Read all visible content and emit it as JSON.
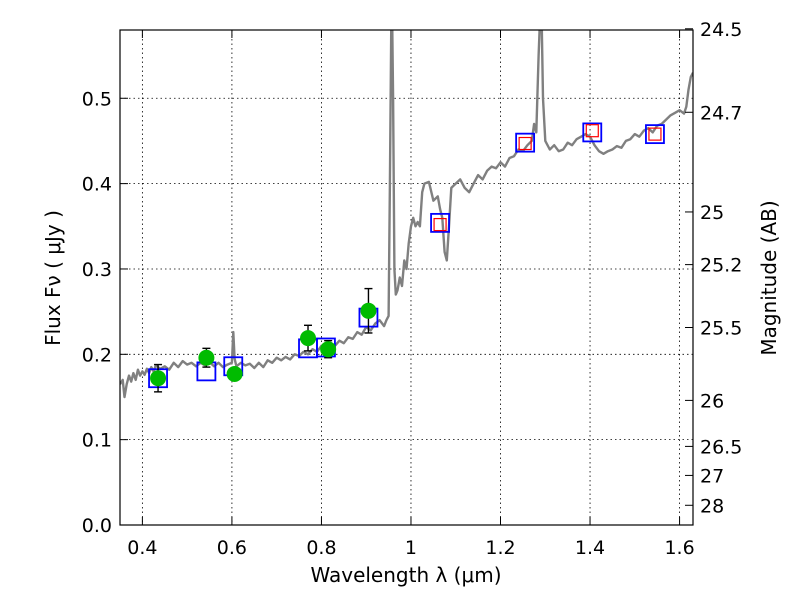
{
  "chart_data": {
    "type": "scatter",
    "title": "",
    "xlabel": "Wavelength  λ (μm)",
    "ylabel": "Flux  Fν  ( μJy )",
    "ylabel_right": "Magnitude (AB)",
    "xlim": [
      0.35,
      1.63
    ],
    "ylim": [
      0.0,
      0.58
    ],
    "grid": true,
    "x_ticks": [
      0.4,
      0.6,
      0.8,
      1.0,
      1.2,
      1.4,
      1.6
    ],
    "x_tick_labels": [
      "0.4",
      "0.6",
      "0.8",
      "1",
      "1.2",
      "1.4",
      "1.6"
    ],
    "y_ticks": [
      0.0,
      0.1,
      0.2,
      0.3,
      0.4,
      0.5
    ],
    "y_tick_labels": [
      "0.0",
      "0.1",
      "0.2",
      "0.3",
      "0.4",
      "0.5"
    ],
    "right_ticks": [
      {
        "label": "24.5",
        "flux": 0.5814
      },
      {
        "label": "24.7",
        "flux": 0.4836
      },
      {
        "label": "25",
        "flux": 0.3668
      },
      {
        "label": "25.2",
        "flux": 0.3051
      },
      {
        "label": "25.5",
        "flux": 0.2314
      },
      {
        "label": "26",
        "flux": 0.146
      },
      {
        "label": "26.5",
        "flux": 0.0921
      },
      {
        "label": "27",
        "flux": 0.0581
      },
      {
        "label": "28",
        "flux": 0.0231
      }
    ],
    "series": [
      {
        "name": "model spectrum",
        "style": "line",
        "color": "#808080",
        "points": [
          [
            0.35,
            0.165
          ],
          [
            0.356,
            0.17
          ],
          [
            0.36,
            0.15
          ],
          [
            0.365,
            0.165
          ],
          [
            0.37,
            0.175
          ],
          [
            0.375,
            0.168
          ],
          [
            0.38,
            0.178
          ],
          [
            0.385,
            0.17
          ],
          [
            0.39,
            0.182
          ],
          [
            0.395,
            0.175
          ],
          [
            0.4,
            0.18
          ],
          [
            0.405,
            0.176
          ],
          [
            0.41,
            0.183
          ],
          [
            0.415,
            0.178
          ],
          [
            0.42,
            0.185
          ],
          [
            0.425,
            0.18
          ],
          [
            0.43,
            0.187
          ],
          [
            0.44,
            0.183
          ],
          [
            0.45,
            0.186
          ],
          [
            0.46,
            0.182
          ],
          [
            0.47,
            0.19
          ],
          [
            0.48,
            0.185
          ],
          [
            0.49,
            0.192
          ],
          [
            0.5,
            0.188
          ],
          [
            0.51,
            0.19
          ],
          [
            0.52,
            0.186
          ],
          [
            0.53,
            0.19
          ],
          [
            0.54,
            0.187
          ],
          [
            0.55,
            0.191
          ],
          [
            0.56,
            0.186
          ],
          [
            0.57,
            0.19
          ],
          [
            0.58,
            0.185
          ],
          [
            0.59,
            0.188
          ],
          [
            0.6,
            0.19
          ],
          [
            0.603,
            0.226
          ],
          [
            0.606,
            0.195
          ],
          [
            0.61,
            0.186
          ],
          [
            0.62,
            0.19
          ],
          [
            0.63,
            0.187
          ],
          [
            0.64,
            0.189
          ],
          [
            0.65,
            0.184
          ],
          [
            0.66,
            0.19
          ],
          [
            0.67,
            0.185
          ],
          [
            0.68,
            0.193
          ],
          [
            0.69,
            0.19
          ],
          [
            0.7,
            0.196
          ],
          [
            0.71,
            0.193
          ],
          [
            0.72,
            0.197
          ],
          [
            0.73,
            0.194
          ],
          [
            0.74,
            0.2
          ],
          [
            0.75,
            0.198
          ],
          [
            0.76,
            0.203
          ],
          [
            0.77,
            0.2
          ],
          [
            0.78,
            0.206
          ],
          [
            0.79,
            0.203
          ],
          [
            0.8,
            0.21
          ],
          [
            0.81,
            0.207
          ],
          [
            0.82,
            0.212
          ],
          [
            0.83,
            0.21
          ],
          [
            0.84,
            0.216
          ],
          [
            0.85,
            0.213
          ],
          [
            0.86,
            0.22
          ],
          [
            0.87,
            0.218
          ],
          [
            0.88,
            0.226
          ],
          [
            0.89,
            0.223
          ],
          [
            0.9,
            0.232
          ],
          [
            0.91,
            0.228
          ],
          [
            0.92,
            0.236
          ],
          [
            0.93,
            0.24
          ],
          [
            0.94,
            0.233
          ],
          [
            0.945,
            0.24
          ],
          [
            0.95,
            0.245
          ],
          [
            0.953,
            0.4
          ],
          [
            0.956,
            0.59
          ],
          [
            0.958,
            0.59
          ],
          [
            0.96,
            0.5
          ],
          [
            0.963,
            0.3
          ],
          [
            0.966,
            0.27
          ],
          [
            0.97,
            0.275
          ],
          [
            0.975,
            0.29
          ],
          [
            0.98,
            0.28
          ],
          [
            0.985,
            0.31
          ],
          [
            0.99,
            0.3
          ],
          [
            0.995,
            0.33
          ],
          [
            1.0,
            0.35
          ],
          [
            1.005,
            0.36
          ],
          [
            1.01,
            0.35
          ],
          [
            1.015,
            0.355
          ],
          [
            1.02,
            0.35
          ],
          [
            1.025,
            0.39
          ],
          [
            1.03,
            0.4
          ],
          [
            1.04,
            0.402
          ],
          [
            1.05,
            0.38
          ],
          [
            1.06,
            0.385
          ],
          [
            1.065,
            0.37
          ],
          [
            1.07,
            0.36
          ],
          [
            1.075,
            0.32
          ],
          [
            1.08,
            0.31
          ],
          [
            1.085,
            0.35
          ],
          [
            1.09,
            0.395
          ],
          [
            1.1,
            0.4
          ],
          [
            1.11,
            0.405
          ],
          [
            1.12,
            0.395
          ],
          [
            1.13,
            0.39
          ],
          [
            1.14,
            0.4
          ],
          [
            1.15,
            0.41
          ],
          [
            1.16,
            0.405
          ],
          [
            1.17,
            0.415
          ],
          [
            1.18,
            0.42
          ],
          [
            1.19,
            0.418
          ],
          [
            1.2,
            0.425
          ],
          [
            1.21,
            0.42
          ],
          [
            1.22,
            0.43
          ],
          [
            1.23,
            0.432
          ],
          [
            1.24,
            0.44
          ],
          [
            1.25,
            0.438
          ],
          [
            1.26,
            0.445
          ],
          [
            1.27,
            0.45
          ],
          [
            1.275,
            0.47
          ],
          [
            1.28,
            0.46
          ],
          [
            1.285,
            0.55
          ],
          [
            1.288,
            0.59
          ],
          [
            1.292,
            0.59
          ],
          [
            1.295,
            0.5
          ],
          [
            1.3,
            0.45
          ],
          [
            1.31,
            0.44
          ],
          [
            1.32,
            0.445
          ],
          [
            1.33,
            0.438
          ],
          [
            1.34,
            0.44
          ],
          [
            1.35,
            0.448
          ],
          [
            1.36,
            0.445
          ],
          [
            1.37,
            0.452
          ],
          [
            1.38,
            0.455
          ],
          [
            1.39,
            0.458
          ],
          [
            1.4,
            0.455
          ],
          [
            1.41,
            0.445
          ],
          [
            1.42,
            0.438
          ],
          [
            1.43,
            0.435
          ],
          [
            1.44,
            0.438
          ],
          [
            1.45,
            0.44
          ],
          [
            1.46,
            0.444
          ],
          [
            1.47,
            0.442
          ],
          [
            1.48,
            0.45
          ],
          [
            1.49,
            0.452
          ],
          [
            1.5,
            0.458
          ],
          [
            1.51,
            0.455
          ],
          [
            1.52,
            0.462
          ],
          [
            1.53,
            0.465
          ],
          [
            1.54,
            0.46
          ],
          [
            1.55,
            0.468
          ],
          [
            1.56,
            0.47
          ],
          [
            1.57,
            0.475
          ],
          [
            1.58,
            0.48
          ],
          [
            1.59,
            0.483
          ],
          [
            1.6,
            0.486
          ],
          [
            1.61,
            0.482
          ],
          [
            1.615,
            0.49
          ],
          [
            1.62,
            0.51
          ],
          [
            1.625,
            0.525
          ],
          [
            1.63,
            0.53
          ]
        ]
      },
      {
        "name": "model photometry (blue squares)",
        "style": "open-square",
        "color": "#0000ff",
        "x": [
          0.435,
          0.543,
          0.603,
          0.77,
          0.81,
          0.905,
          1.065,
          1.255,
          1.405,
          1.545
        ],
        "y": [
          0.172,
          0.18,
          0.186,
          0.207,
          0.208,
          0.243,
          0.354,
          0.448,
          0.46,
          0.458
        ]
      },
      {
        "name": "observed photometry",
        "style": "filled-circle",
        "color": "#00bb00",
        "x": [
          0.435,
          0.543,
          0.606,
          0.77,
          0.815,
          0.905
        ],
        "y": [
          0.172,
          0.196,
          0.177,
          0.219,
          0.206,
          0.251
        ],
        "yerr": [
          0.016,
          0.011,
          0.0,
          0.015,
          0.01,
          0.026
        ]
      },
      {
        "name": "upper limits (red squares)",
        "style": "open-square",
        "color": "#ff0000",
        "x": [
          1.065,
          1.255,
          1.405,
          1.545
        ],
        "y": [
          0.352,
          0.447,
          0.462,
          0.458
        ]
      }
    ]
  }
}
